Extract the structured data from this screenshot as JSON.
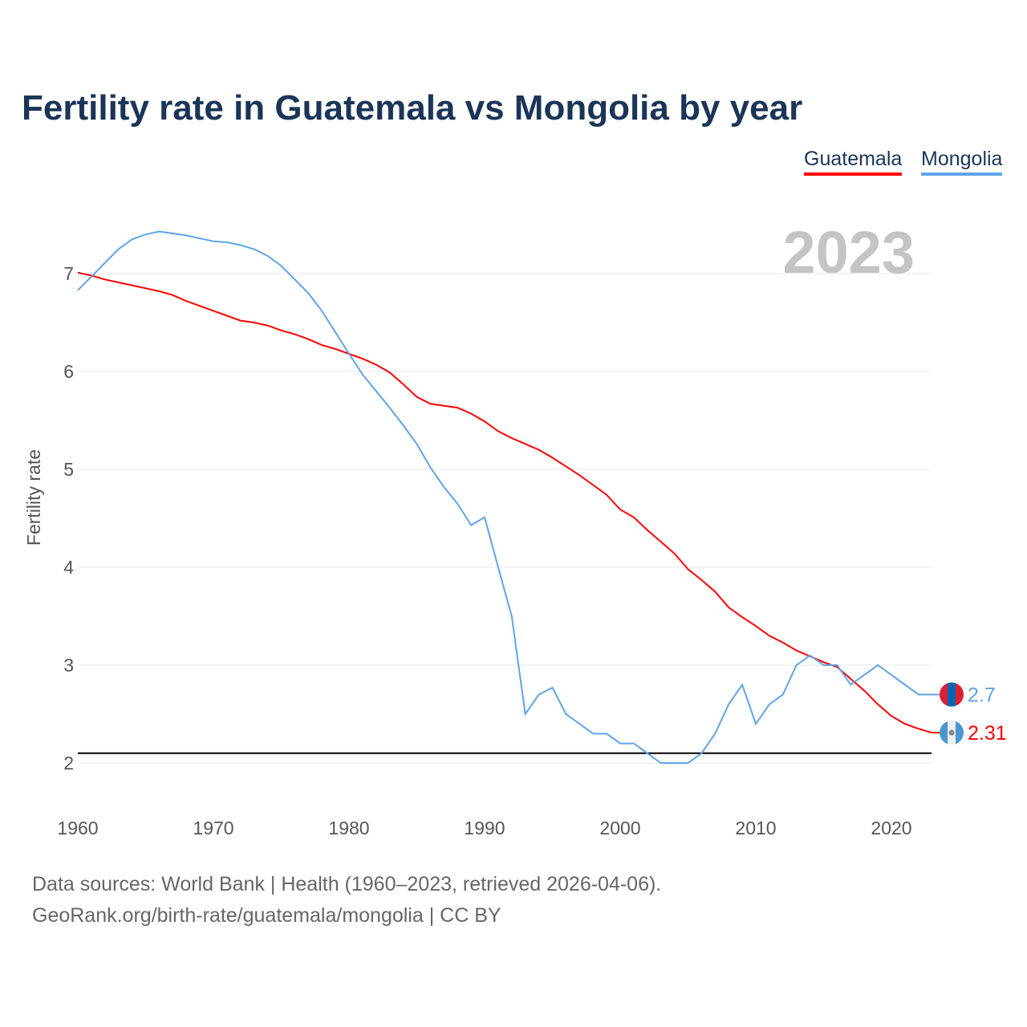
{
  "chart_data": {
    "type": "line",
    "title": "Fertility rate in Guatemala vs Mongolia by year",
    "xlabel": "",
    "ylabel": "Fertility rate",
    "xlim": [
      1960,
      2023
    ],
    "ylim": [
      1.5,
      7.6
    ],
    "x_ticks": [
      "1960",
      "1970",
      "1980",
      "1990",
      "2000",
      "2010",
      "2020"
    ],
    "y_ticks": [
      "2",
      "3",
      "4",
      "5",
      "6",
      "7"
    ],
    "grid": "horizontal",
    "legend_position": "top-right",
    "year_label": "2023",
    "reference_line": 2.1,
    "colors": {
      "Guatemala": "#ff0000",
      "Mongolia": "#5fa4e8"
    },
    "x": [
      1960,
      1961,
      1962,
      1963,
      1964,
      1965,
      1966,
      1967,
      1968,
      1969,
      1970,
      1971,
      1972,
      1973,
      1974,
      1975,
      1976,
      1977,
      1978,
      1979,
      1980,
      1981,
      1982,
      1983,
      1984,
      1985,
      1986,
      1987,
      1988,
      1989,
      1990,
      1991,
      1992,
      1993,
      1994,
      1995,
      1996,
      1997,
      1998,
      1999,
      2000,
      2001,
      2002,
      2003,
      2004,
      2005,
      2006,
      2007,
      2008,
      2009,
      2010,
      2011,
      2012,
      2013,
      2014,
      2015,
      2016,
      2017,
      2018,
      2019,
      2020,
      2021,
      2022,
      2023
    ],
    "series": [
      {
        "name": "Guatemala",
        "end_label": "2.31",
        "values": [
          7.01,
          6.98,
          6.94,
          6.91,
          6.88,
          6.85,
          6.82,
          6.78,
          6.72,
          6.67,
          6.62,
          6.57,
          6.52,
          6.5,
          6.47,
          6.42,
          6.38,
          6.33,
          6.27,
          6.23,
          6.18,
          6.13,
          6.07,
          5.99,
          5.87,
          5.74,
          5.67,
          5.65,
          5.63,
          5.57,
          5.49,
          5.39,
          5.32,
          5.26,
          5.2,
          5.12,
          5.03,
          4.94,
          4.84,
          4.74,
          4.59,
          4.51,
          4.38,
          4.26,
          4.14,
          3.98,
          3.87,
          3.75,
          3.59,
          3.49,
          3.4,
          3.3,
          3.23,
          3.15,
          3.09,
          3.03,
          2.98,
          2.86,
          2.74,
          2.6,
          2.48,
          2.4,
          2.35,
          2.31
        ]
      },
      {
        "name": "Mongolia",
        "end_label": "2.7",
        "values": [
          6.83,
          6.97,
          7.11,
          7.25,
          7.35,
          7.4,
          7.43,
          7.41,
          7.39,
          7.36,
          7.33,
          7.32,
          7.29,
          7.25,
          7.18,
          7.08,
          6.94,
          6.8,
          6.62,
          6.4,
          6.18,
          5.97,
          5.8,
          5.63,
          5.45,
          5.26,
          5.02,
          4.82,
          4.65,
          4.43,
          4.51,
          4.0,
          3.5,
          2.5,
          2.7,
          2.77,
          2.5,
          2.4,
          2.3,
          2.3,
          2.2,
          2.2,
          2.1,
          2.0,
          2.0,
          2.0,
          2.1,
          2.3,
          2.6,
          2.8,
          2.4,
          2.6,
          2.7,
          3.0,
          3.1,
          3.0,
          3.0,
          2.8,
          2.9,
          3.0,
          2.9,
          2.8,
          2.7,
          2.7
        ]
      }
    ]
  },
  "footer": {
    "line1": "Data sources: World Bank | Health (1960–2023, retrieved 2026-04-06).",
    "line2": "GeoRank.org/birth-rate/guatemala/mongolia | CC BY"
  }
}
